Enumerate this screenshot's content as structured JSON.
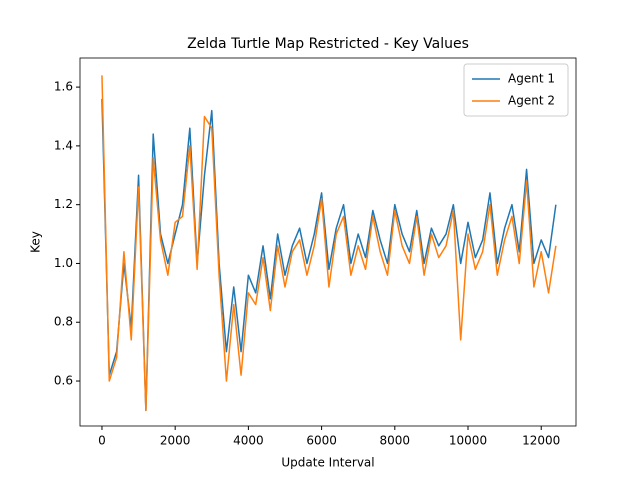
{
  "chart_data": {
    "type": "line",
    "title": "Zelda Turtle Map Restricted - Key Values",
    "xlabel": "Update Interval",
    "ylabel": "Key",
    "x": [
      0,
      200,
      400,
      600,
      800,
      1000,
      1200,
      1400,
      1600,
      1800,
      2000,
      2200,
      2400,
      2600,
      2800,
      3000,
      3200,
      3400,
      3600,
      3800,
      4000,
      4200,
      4400,
      4600,
      4800,
      5000,
      5200,
      5400,
      5600,
      5800,
      6000,
      6200,
      6400,
      6600,
      6800,
      7000,
      7200,
      7400,
      7600,
      7800,
      8000,
      8200,
      8400,
      8600,
      8800,
      9000,
      9200,
      9400,
      9600,
      9800,
      10000,
      10200,
      10400,
      10600,
      10800,
      11000,
      11200,
      11400,
      11600,
      11800,
      12000,
      12200,
      12400
    ],
    "series": [
      {
        "name": "Agent 1",
        "color": "#1f77b4",
        "values": [
          1.56,
          0.62,
          0.7,
          1.0,
          0.78,
          1.3,
          0.5,
          1.44,
          1.1,
          1.0,
          1.1,
          1.2,
          1.46,
          1.0,
          1.3,
          1.52,
          1.0,
          0.7,
          0.92,
          0.7,
          0.96,
          0.9,
          1.06,
          0.88,
          1.1,
          0.96,
          1.06,
          1.12,
          1.0,
          1.1,
          1.24,
          0.98,
          1.12,
          1.2,
          1.0,
          1.1,
          1.02,
          1.18,
          1.08,
          1.0,
          1.2,
          1.1,
          1.04,
          1.18,
          1.0,
          1.12,
          1.06,
          1.1,
          1.2,
          1.0,
          1.14,
          1.02,
          1.08,
          1.24,
          1.0,
          1.12,
          1.2,
          1.04,
          1.32,
          1.0,
          1.08,
          1.02,
          1.2
        ]
      },
      {
        "name": "Agent 2",
        "color": "#ff7f0e",
        "values": [
          1.64,
          0.6,
          0.68,
          1.04,
          0.74,
          1.26,
          0.5,
          1.36,
          1.08,
          0.96,
          1.14,
          1.16,
          1.4,
          0.98,
          1.5,
          1.46,
          0.96,
          0.6,
          0.86,
          0.62,
          0.9,
          0.86,
          1.02,
          0.84,
          1.06,
          0.92,
          1.04,
          1.08,
          0.96,
          1.06,
          1.22,
          0.92,
          1.1,
          1.16,
          0.96,
          1.06,
          0.98,
          1.16,
          1.04,
          0.96,
          1.18,
          1.06,
          1.0,
          1.16,
          0.96,
          1.1,
          1.02,
          1.06,
          1.18,
          0.74,
          1.1,
          0.98,
          1.04,
          1.2,
          0.96,
          1.08,
          1.16,
          1.0,
          1.28,
          0.92,
          1.04,
          0.9,
          1.06
        ]
      }
    ],
    "xlim": [
      -600,
      12950
    ],
    "ylim": [
      0.447,
      1.699
    ],
    "xticks": [
      0,
      2000,
      4000,
      6000,
      8000,
      10000,
      12000
    ],
    "yticks": [
      0.6,
      0.8,
      {
        "value": 1,
        "label": "1.0"
      },
      1.2,
      1.4,
      1.6
    ],
    "legend": "upper right"
  }
}
